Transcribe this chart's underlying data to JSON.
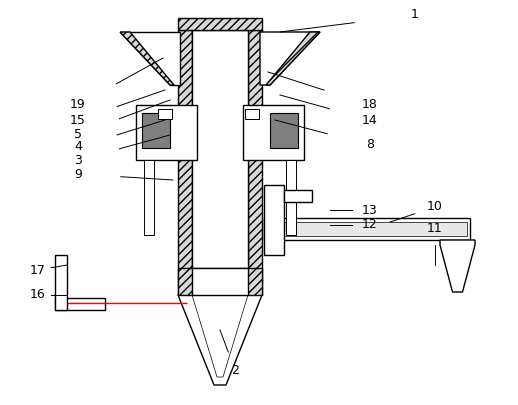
{
  "bg_color": "#ffffff",
  "line_color": "#000000",
  "figsize": [
    5.18,
    4.05
  ],
  "dpi": 100
}
